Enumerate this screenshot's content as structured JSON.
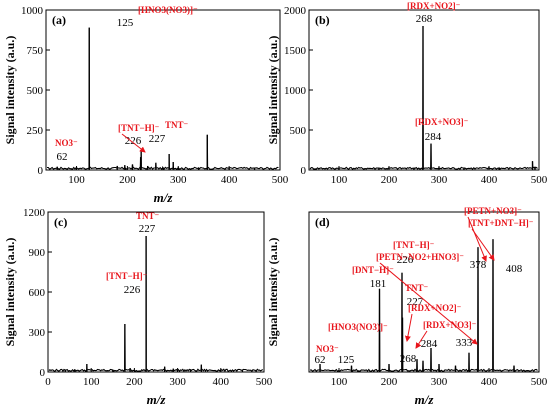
{
  "figure": {
    "annotation_color": "#e8141b",
    "line_color": "#000000"
  },
  "chart_data": [
    {
      "type": "line",
      "panel": "(a)",
      "xlabel": "m/z",
      "ylabel": "Signal intensity (a.u.)",
      "xlim": [
        40,
        500
      ],
      "ylim": [
        0,
        1000
      ],
      "x_ticks": [
        100,
        200,
        300,
        400,
        500
      ],
      "y_ticks": [
        0,
        250,
        500,
        750,
        1000
      ],
      "peaks": [
        {
          "x": 62,
          "y": 20
        },
        {
          "x": 125,
          "y": 890
        },
        {
          "x": 180,
          "y": 25
        },
        {
          "x": 195,
          "y": 30
        },
        {
          "x": 210,
          "y": 35
        },
        {
          "x": 226,
          "y": 80
        },
        {
          "x": 227,
          "y": 120
        },
        {
          "x": 240,
          "y": 25
        },
        {
          "x": 256,
          "y": 45
        },
        {
          "x": 270,
          "y": 15
        },
        {
          "x": 282,
          "y": 100
        },
        {
          "x": 290,
          "y": 50
        },
        {
          "x": 300,
          "y": 15
        },
        {
          "x": 340,
          "y": 12
        },
        {
          "x": 357,
          "y": 220
        },
        {
          "x": 400,
          "y": 8
        },
        {
          "x": 450,
          "y": 6
        }
      ],
      "annotations": [
        {
          "label": "[HNO3(NO3)]⁻",
          "mz": "125",
          "x": 125
        },
        {
          "label": "NO3⁻",
          "mz": "62",
          "x": 62
        },
        {
          "label": "[TNT−H]⁻",
          "mz": "226",
          "x": 226
        },
        {
          "label": "TNT⁻",
          "mz": "227",
          "x": 227
        }
      ]
    },
    {
      "type": "line",
      "panel": "(b)",
      "xlabel": "",
      "ylabel": "Signal intensity (a.u.)",
      "xlim": [
        40,
        500
      ],
      "ylim": [
        0,
        2000
      ],
      "x_ticks": [
        100,
        200,
        300,
        400,
        500
      ],
      "y_ticks": [
        0,
        500,
        1000,
        1500,
        2000
      ],
      "peaks": [
        {
          "x": 100,
          "y": 8
        },
        {
          "x": 180,
          "y": 10
        },
        {
          "x": 250,
          "y": 12
        },
        {
          "x": 268,
          "y": 1800
        },
        {
          "x": 284,
          "y": 330
        },
        {
          "x": 300,
          "y": 15
        },
        {
          "x": 350,
          "y": 8
        },
        {
          "x": 420,
          "y": 6
        },
        {
          "x": 487,
          "y": 110
        },
        {
          "x": 492,
          "y": 40
        }
      ],
      "annotations": [
        {
          "label": "[RDX+NO2]⁻",
          "mz": "268",
          "x": 268
        },
        {
          "label": "[RDX+NO3]⁻",
          "mz": "284",
          "x": 284
        }
      ]
    },
    {
      "type": "line",
      "panel": "(c)",
      "xlabel": "m/z",
      "ylabel": "Signal intensity (a.u.)",
      "xlim": [
        0,
        500
      ],
      "ylim": [
        0,
        1200
      ],
      "x_ticks": [
        0,
        100,
        200,
        300,
        400,
        500
      ],
      "y_ticks": [
        0,
        300,
        600,
        900,
        1200
      ],
      "peaks": [
        {
          "x": 40,
          "y": 15
        },
        {
          "x": 62,
          "y": 20
        },
        {
          "x": 90,
          "y": 60
        },
        {
          "x": 150,
          "y": 15
        },
        {
          "x": 178,
          "y": 360
        },
        {
          "x": 190,
          "y": 30
        },
        {
          "x": 227,
          "y": 1020
        },
        {
          "x": 270,
          "y": 40
        },
        {
          "x": 290,
          "y": 25
        },
        {
          "x": 330,
          "y": 20
        },
        {
          "x": 355,
          "y": 55
        },
        {
          "x": 400,
          "y": 15
        },
        {
          "x": 450,
          "y": 10
        }
      ],
      "annotations": [
        {
          "label": "TNT⁻",
          "mz": "227",
          "x": 227
        },
        {
          "label": "[TNT−H]⁻",
          "mz": "226",
          "x": 226
        }
      ]
    },
    {
      "type": "line",
      "panel": "(d)",
      "xlabel": "m/z",
      "ylabel": "Signal intensity (a.u.)",
      "xlim": [
        40,
        500
      ],
      "ylim": [
        0,
        1
      ],
      "x_ticks": [
        100,
        200,
        300,
        400,
        500
      ],
      "y_ticks": [],
      "peaks": [
        {
          "x": 62,
          "y": 0.05
        },
        {
          "x": 125,
          "y": 0.04
        },
        {
          "x": 181,
          "y": 0.52
        },
        {
          "x": 200,
          "y": 0.05
        },
        {
          "x": 226,
          "y": 0.62
        },
        {
          "x": 227,
          "y": 0.34
        },
        {
          "x": 256,
          "y": 0.08
        },
        {
          "x": 268,
          "y": 0.07
        },
        {
          "x": 284,
          "y": 0.15
        },
        {
          "x": 300,
          "y": 0.05
        },
        {
          "x": 333,
          "y": 0.04
        },
        {
          "x": 360,
          "y": 0.12
        },
        {
          "x": 378,
          "y": 0.78
        },
        {
          "x": 408,
          "y": 0.83
        },
        {
          "x": 450,
          "y": 0.04
        }
      ],
      "annotations": [
        {
          "label": "NO3⁻",
          "mz": "62",
          "x": 62
        },
        {
          "label": "[HNO3(NO3)]⁻",
          "mz": "125",
          "x": 125
        },
        {
          "label": "[DNT−H]⁻",
          "mz": "181",
          "x": 181
        },
        {
          "label": "[TNT−H]⁻",
          "mz": "226",
          "x": 226
        },
        {
          "label": "TNT⁻",
          "mz": "227",
          "x": 227
        },
        {
          "label": "[RDX+NO2]⁻",
          "mz": "268",
          "x": 268
        },
        {
          "label": "[RDX+NO3]⁻",
          "mz": "284",
          "x": 284
        },
        {
          "label": "[PETN−NO2+HNO3]⁻",
          "mz": "333",
          "x": 333
        },
        {
          "label": "[PETN+NO3]⁻",
          "mz": "378",
          "x": 378
        },
        {
          "label": "[TNT+DNT−H]⁻",
          "mz": "408",
          "x": 408
        }
      ]
    }
  ]
}
